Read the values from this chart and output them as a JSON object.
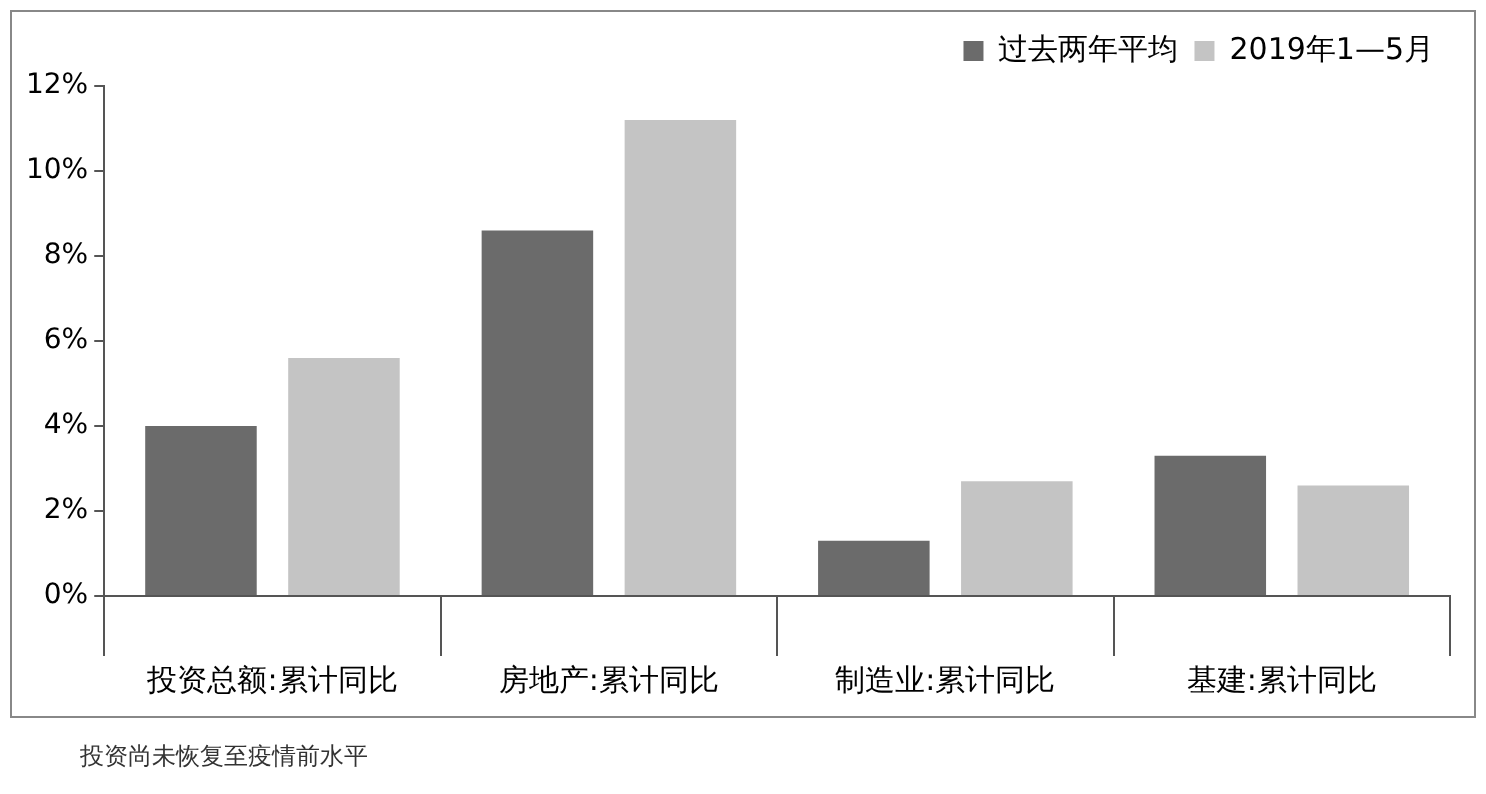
{
  "chart_data": {
    "type": "bar",
    "categories": [
      "投资总额:累计同比",
      "房地产:累计同比",
      "制造业:累计同比",
      "基建:累计同比"
    ],
    "series": [
      {
        "name": "过去两年平均",
        "color": "#6b6b6b",
        "values": [
          4.0,
          8.6,
          1.3,
          3.3
        ]
      },
      {
        "name": "2019年1—5月",
        "color": "#c4c4c4",
        "values": [
          5.6,
          11.2,
          2.7,
          2.6
        ]
      }
    ],
    "ylim": [
      0,
      12
    ],
    "yticks": [
      {
        "value": 0,
        "label": "0%"
      },
      {
        "value": 2,
        "label": "2%"
      },
      {
        "value": 4,
        "label": "4%"
      },
      {
        "value": 6,
        "label": "6%"
      },
      {
        "value": 8,
        "label": "8%"
      },
      {
        "value": 10,
        "label": "10%"
      },
      {
        "value": 12,
        "label": "12%"
      }
    ],
    "grid": false,
    "legend": "top right",
    "annotations": [
      "投资尚未恢复至疫情前水平"
    ]
  }
}
